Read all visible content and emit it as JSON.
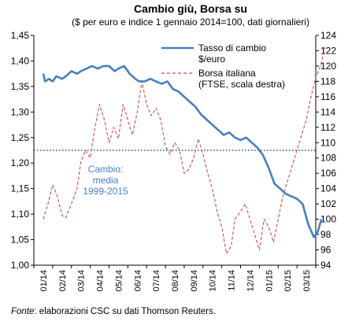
{
  "chart_data": {
    "type": "line",
    "title": "Cambio giù, Borsa su",
    "subtitle": "($ per euro e indice 1 gennaio 2014=100, dati giornalieri)",
    "x_categories": [
      "01/14",
      "02/14",
      "03/14",
      "04/14",
      "05/14",
      "06/14",
      "07/14",
      "08/14",
      "09/14",
      "10/14",
      "11/14",
      "12/14",
      "01/15",
      "02/15",
      "03/15"
    ],
    "y_left": {
      "lim": [
        1.0,
        1.45
      ],
      "ticks": [
        "1,00",
        "1,05",
        "1,10",
        "1,15",
        "1,20",
        "1,25",
        "1,30",
        "1,35",
        "1,40",
        "1,45"
      ]
    },
    "y_right": {
      "lim": [
        94,
        124
      ],
      "ticks": [
        "94",
        "96",
        "98",
        "100",
        "102",
        "104",
        "106",
        "108",
        "110",
        "112",
        "114",
        "116",
        "118",
        "120",
        "122",
        "124"
      ]
    },
    "series": [
      {
        "name": "Tasso di cambio $/euro",
        "axis": "left",
        "color": "#4a7ebb",
        "style": "solid",
        "points": [
          [
            0,
            1.375
          ],
          [
            0.1,
            1.36
          ],
          [
            0.3,
            1.365
          ],
          [
            0.5,
            1.36
          ],
          [
            0.7,
            1.37
          ],
          [
            1.0,
            1.365
          ],
          [
            1.2,
            1.37
          ],
          [
            1.5,
            1.38
          ],
          [
            1.8,
            1.375
          ],
          [
            2.0,
            1.38
          ],
          [
            2.3,
            1.385
          ],
          [
            2.6,
            1.39
          ],
          [
            2.9,
            1.385
          ],
          [
            3.2,
            1.39
          ],
          [
            3.5,
            1.39
          ],
          [
            3.8,
            1.38
          ],
          [
            4.0,
            1.385
          ],
          [
            4.3,
            1.39
          ],
          [
            4.6,
            1.375
          ],
          [
            4.9,
            1.365
          ],
          [
            5.1,
            1.36
          ],
          [
            5.4,
            1.36
          ],
          [
            5.7,
            1.365
          ],
          [
            6.0,
            1.36
          ],
          [
            6.3,
            1.355
          ],
          [
            6.6,
            1.36
          ],
          [
            6.9,
            1.345
          ],
          [
            7.2,
            1.34
          ],
          [
            7.5,
            1.33
          ],
          [
            7.8,
            1.32
          ],
          [
            8.1,
            1.31
          ],
          [
            8.4,
            1.295
          ],
          [
            8.7,
            1.285
          ],
          [
            9.0,
            1.275
          ],
          [
            9.3,
            1.265
          ],
          [
            9.6,
            1.255
          ],
          [
            9.9,
            1.26
          ],
          [
            10.2,
            1.25
          ],
          [
            10.5,
            1.245
          ],
          [
            10.8,
            1.25
          ],
          [
            11.1,
            1.24
          ],
          [
            11.4,
            1.23
          ],
          [
            11.7,
            1.215
          ],
          [
            12.0,
            1.19
          ],
          [
            12.3,
            1.16
          ],
          [
            12.6,
            1.15
          ],
          [
            12.9,
            1.14
          ],
          [
            13.2,
            1.135
          ],
          [
            13.5,
            1.13
          ],
          [
            13.8,
            1.12
          ],
          [
            14.1,
            1.08
          ],
          [
            14.4,
            1.055
          ],
          [
            14.6,
            1.065
          ],
          [
            14.8,
            1.09
          ]
        ]
      },
      {
        "name": "Borsa italiana (FTSE, scala destra)",
        "axis": "right",
        "color": "#c0504d",
        "style": "dashed",
        "points": [
          [
            0,
            100
          ],
          [
            0.25,
            102
          ],
          [
            0.5,
            104.5
          ],
          [
            0.75,
            103
          ],
          [
            1.0,
            100.5
          ],
          [
            1.2,
            100.2
          ],
          [
            1.5,
            102
          ],
          [
            1.8,
            104
          ],
          [
            2.0,
            107.5
          ],
          [
            2.25,
            109
          ],
          [
            2.5,
            108
          ],
          [
            2.75,
            112
          ],
          [
            3.0,
            115
          ],
          [
            3.25,
            113
          ],
          [
            3.5,
            110
          ],
          [
            3.75,
            112
          ],
          [
            4.0,
            110.5
          ],
          [
            4.25,
            115
          ],
          [
            4.5,
            113
          ],
          [
            4.75,
            111
          ],
          [
            5.0,
            114
          ],
          [
            5.25,
            118
          ],
          [
            5.5,
            115
          ],
          [
            5.75,
            113.5
          ],
          [
            6.0,
            114.5
          ],
          [
            6.25,
            113
          ],
          [
            6.5,
            109.5
          ],
          [
            6.75,
            108.5
          ],
          [
            7.0,
            110
          ],
          [
            7.25,
            109
          ],
          [
            7.5,
            106
          ],
          [
            7.75,
            106.5
          ],
          [
            8.0,
            108
          ],
          [
            8.25,
            110.5
          ],
          [
            8.5,
            108.5
          ],
          [
            8.75,
            106
          ],
          [
            9.0,
            104
          ],
          [
            9.25,
            101
          ],
          [
            9.5,
            99
          ],
          [
            9.75,
            95.5
          ],
          [
            10.0,
            96.5
          ],
          [
            10.2,
            100
          ],
          [
            10.5,
            101
          ],
          [
            10.75,
            102
          ],
          [
            11.0,
            100
          ],
          [
            11.25,
            98
          ],
          [
            11.5,
            96
          ],
          [
            11.75,
            100
          ],
          [
            12.0,
            99
          ],
          [
            12.25,
            97
          ],
          [
            12.5,
            100
          ],
          [
            12.75,
            103
          ],
          [
            13.0,
            105
          ],
          [
            13.25,
            107
          ],
          [
            13.5,
            109
          ],
          [
            13.75,
            111
          ],
          [
            14.0,
            113
          ],
          [
            14.25,
            116
          ],
          [
            14.5,
            118.5
          ],
          [
            14.75,
            120
          ],
          [
            15.0,
            122.5
          ]
        ]
      }
    ],
    "reference_line": {
      "value": 1.225,
      "axis": "left",
      "color": "#1f4e9c",
      "style": "dotted"
    },
    "annotation": [
      "Cambio:",
      "media",
      "1999-2015"
    ],
    "legend": {
      "position": "top-right",
      "entries": [
        {
          "lines": [
            "Tasso di cambio",
            "$/euro"
          ]
        },
        {
          "lines": [
            "Borsa italiana",
            "(FTSE, scala destra)"
          ]
        }
      ]
    },
    "grid": false
  },
  "source": {
    "label": "Fonte",
    "text": ": elaborazioni CSC su dati Thomson Reuters."
  }
}
